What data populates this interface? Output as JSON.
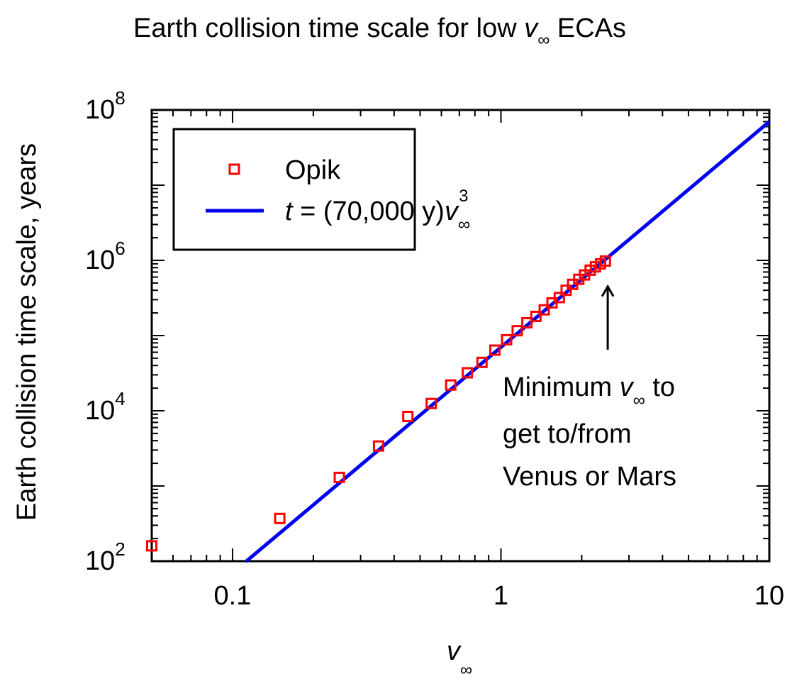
{
  "chart_data": {
    "type": "scatter",
    "title": {
      "pre": "Earth collision time scale for low ",
      "var": "v",
      "sub": "∞",
      "post": " ECAs"
    },
    "xlabel": {
      "var": "v",
      "sub": "∞"
    },
    "ylabel": "Earth collision time scale, years",
    "x_scale": "log",
    "y_scale": "log",
    "xlim": [
      0.05,
      10
    ],
    "ylim": [
      100,
      100000000
    ],
    "x_ticks": [
      {
        "value": 0.1,
        "label": "0.1"
      },
      {
        "value": 1,
        "label": "1"
      },
      {
        "value": 10,
        "label": "10"
      }
    ],
    "y_ticks": [
      {
        "value": 100,
        "base": "10",
        "exp": "2"
      },
      {
        "value": 10000,
        "base": "10",
        "exp": "4"
      },
      {
        "value": 1000000,
        "base": "10",
        "exp": "6"
      },
      {
        "value": 100000000,
        "base": "10",
        "exp": "8"
      }
    ],
    "grid": false,
    "legend_position": "top-left",
    "legend": {
      "opik": "Opik",
      "fit_var_t": "t",
      "fit_mid": " = (70,000 y)",
      "fit_var_v": "v",
      "fit_sub": "∞",
      "fit_sup": "3"
    },
    "series": [
      {
        "name": "Opik",
        "kind": "scatter",
        "marker": "square-open",
        "color": "#ff0000",
        "points": [
          {
            "x": 0.05,
            "y": 160
          },
          {
            "x": 0.15,
            "y": 370
          },
          {
            "x": 0.25,
            "y": 1300
          },
          {
            "x": 0.35,
            "y": 3400
          },
          {
            "x": 0.45,
            "y": 8400
          },
          {
            "x": 0.55,
            "y": 12500
          },
          {
            "x": 0.65,
            "y": 22000
          },
          {
            "x": 0.75,
            "y": 32000
          },
          {
            "x": 0.85,
            "y": 44000
          },
          {
            "x": 0.95,
            "y": 64000
          },
          {
            "x": 1.05,
            "y": 88000
          },
          {
            "x": 1.15,
            "y": 116000
          },
          {
            "x": 1.25,
            "y": 148000
          },
          {
            "x": 1.35,
            "y": 180000
          },
          {
            "x": 1.45,
            "y": 220000
          },
          {
            "x": 1.55,
            "y": 272000
          },
          {
            "x": 1.65,
            "y": 320000
          },
          {
            "x": 1.75,
            "y": 400000
          },
          {
            "x": 1.85,
            "y": 480000
          },
          {
            "x": 1.95,
            "y": 560000
          },
          {
            "x": 2.05,
            "y": 640000
          },
          {
            "x": 2.15,
            "y": 740000
          },
          {
            "x": 2.25,
            "y": 820000
          },
          {
            "x": 2.35,
            "y": 900000
          },
          {
            "x": 2.45,
            "y": 980000
          }
        ]
      },
      {
        "name": "t = (70,000 y)v∞³",
        "kind": "line",
        "color": "#0000ee",
        "coefficient": 70000,
        "exponent": 3,
        "x_range": [
          0.112,
          10
        ]
      }
    ],
    "annotation": {
      "line1_pre": "Minimum ",
      "line1_var": "v",
      "line1_sub": "∞",
      "line1_post": " to",
      "line2": "get to/from",
      "line3": "Venus or Mars",
      "arrow_x": 2.5,
      "arrow_y_tip": 450000,
      "arrow_y_tail": 65000
    }
  }
}
